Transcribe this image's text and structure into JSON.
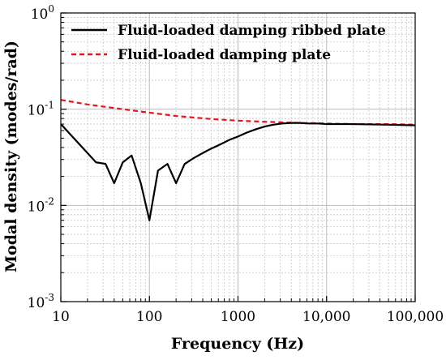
{
  "chart_data": {
    "type": "line",
    "title": "",
    "xlabel": "Frequency (Hz)",
    "ylabel": "Modal density (modes/rad)",
    "xscale": "log",
    "yscale": "log",
    "xlim": [
      10,
      100000
    ],
    "ylim": [
      0.001,
      1
    ],
    "x_tick_values": [
      10,
      100,
      1000,
      10000,
      100000
    ],
    "x_tick_labels": [
      "10",
      "100",
      "1000",
      "10,000",
      "100,000"
    ],
    "y_tick_values": [
      0.001,
      0.01,
      0.1,
      1
    ],
    "y_tick_labels": [
      {
        "base": "10",
        "exp": "-3"
      },
      {
        "base": "10",
        "exp": "-2"
      },
      {
        "base": "10",
        "exp": "-1"
      },
      {
        "base": "10",
        "exp": "0"
      }
    ],
    "grid": true,
    "legend_position": "top",
    "series": [
      {
        "name": "Fluid-loaded damping ribbed plate",
        "color": "#000000",
        "dash": "solid",
        "x": [
          10,
          25,
          32,
          40,
          50,
          63,
          80,
          100,
          125,
          160,
          200,
          250,
          315,
          400,
          500,
          630,
          800,
          1000,
          1250,
          1600,
          2000,
          2500,
          3150,
          4000,
          5000,
          6300,
          8000,
          10000,
          20000,
          50000,
          100000
        ],
        "y": [
          0.07,
          0.028,
          0.027,
          0.017,
          0.028,
          0.033,
          0.017,
          0.007,
          0.023,
          0.027,
          0.017,
          0.027,
          0.031,
          0.035,
          0.039,
          0.043,
          0.048,
          0.052,
          0.057,
          0.062,
          0.066,
          0.069,
          0.071,
          0.072,
          0.072,
          0.071,
          0.071,
          0.07,
          0.07,
          0.069,
          0.068
        ]
      },
      {
        "name": "Fluid-loaded damping plate",
        "color": "#e8141e",
        "dash": "dashed",
        "x": [
          10,
          20,
          50,
          100,
          200,
          500,
          1000,
          2000,
          5000,
          10000,
          20000,
          50000,
          100000
        ],
        "y": [
          0.125,
          0.112,
          0.1,
          0.092,
          0.085,
          0.079,
          0.076,
          0.074,
          0.072,
          0.071,
          0.07,
          0.07,
          0.069
        ]
      }
    ]
  }
}
